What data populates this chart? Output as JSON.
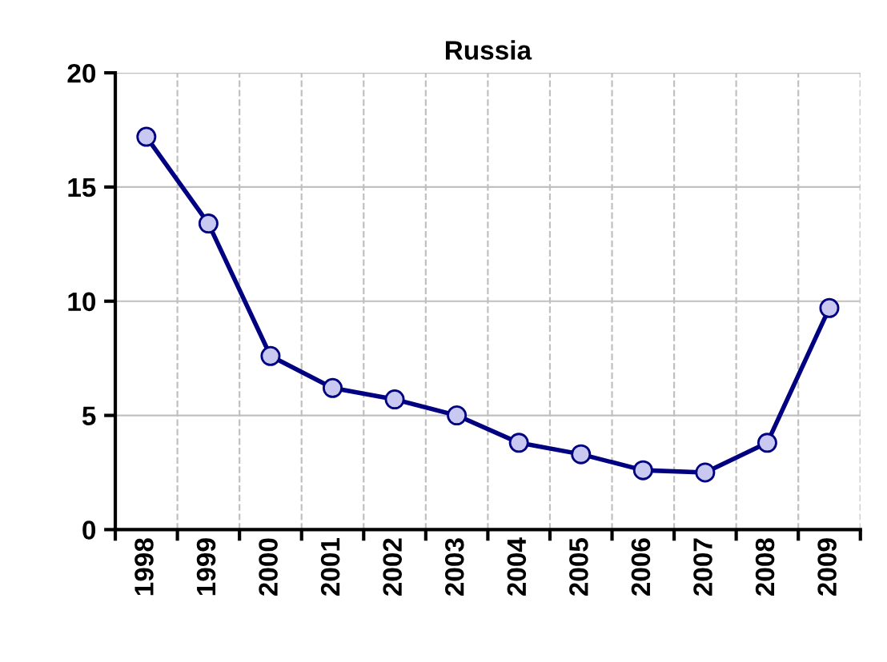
{
  "chart_data": {
    "type": "line",
    "title": "Russia",
    "categories": [
      "1998",
      "1999",
      "2000",
      "2001",
      "2002",
      "2003",
      "2004",
      "2005",
      "2006",
      "2007",
      "2008",
      "2009"
    ],
    "series": [
      {
        "color": "#000080",
        "values": [
          17.2,
          13.4,
          7.6,
          6.2,
          5.7,
          5.0,
          3.8,
          3.3,
          2.6,
          2.5,
          3.8,
          9.7
        ]
      }
    ],
    "ylim": [
      0,
      20
    ],
    "yticks": [
      0,
      5,
      10,
      15,
      20
    ],
    "grid": true,
    "marker": "circle",
    "line_style": "solid"
  }
}
